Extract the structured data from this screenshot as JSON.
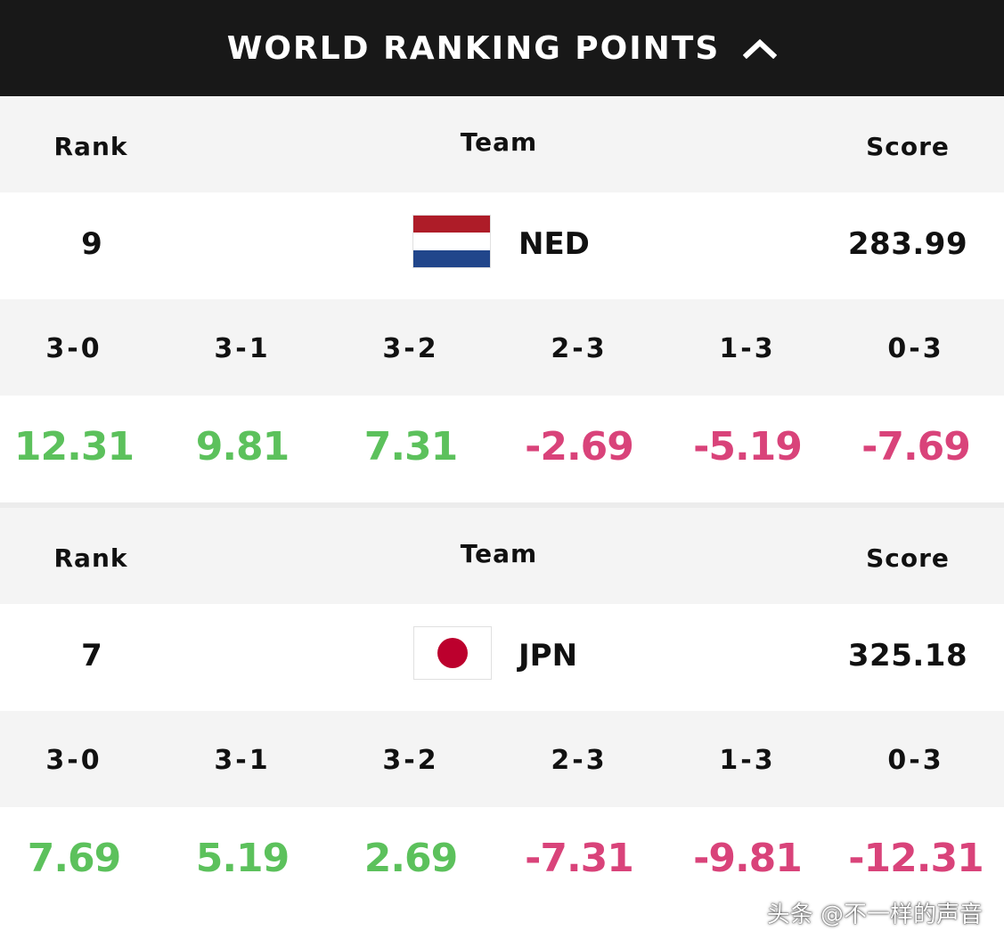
{
  "header": {
    "title": "WORLD RANKING POINTS",
    "toggle_icon": "chevron-up-icon"
  },
  "columns": {
    "rank": "Rank",
    "team": "Team",
    "score": "Score"
  },
  "set_results": [
    "3-0",
    "3-1",
    "3-2",
    "2-3",
    "1-3",
    "0-3"
  ],
  "teams": [
    {
      "rank": "9",
      "code": "NED",
      "score": "283.99",
      "flag": {
        "icon": "netherlands-flag-icon",
        "colors": [
          "#ae1c28",
          "#ffffff",
          "#21468b"
        ]
      },
      "points": [
        {
          "value": "12.31",
          "sign": "pos"
        },
        {
          "value": "9.81",
          "sign": "pos"
        },
        {
          "value": "7.31",
          "sign": "pos"
        },
        {
          "value": "-2.69",
          "sign": "neg"
        },
        {
          "value": "-5.19",
          "sign": "neg"
        },
        {
          "value": "-7.69",
          "sign": "neg"
        }
      ]
    },
    {
      "rank": "7",
      "code": "JPN",
      "score": "325.18",
      "flag": {
        "icon": "japan-flag-icon",
        "colors": [
          "#ffffff",
          "#bc002d"
        ]
      },
      "points": [
        {
          "value": "7.69",
          "sign": "pos"
        },
        {
          "value": "5.19",
          "sign": "pos"
        },
        {
          "value": "2.69",
          "sign": "pos"
        },
        {
          "value": "-7.31",
          "sign": "neg"
        },
        {
          "value": "-9.81",
          "sign": "neg"
        },
        {
          "value": "-12.31",
          "sign": "neg"
        }
      ]
    }
  ],
  "colors": {
    "positive": "#5cc15c",
    "negative": "#d9437a",
    "header_bg": "#181818"
  },
  "watermark": "头条 @不一样的声音"
}
